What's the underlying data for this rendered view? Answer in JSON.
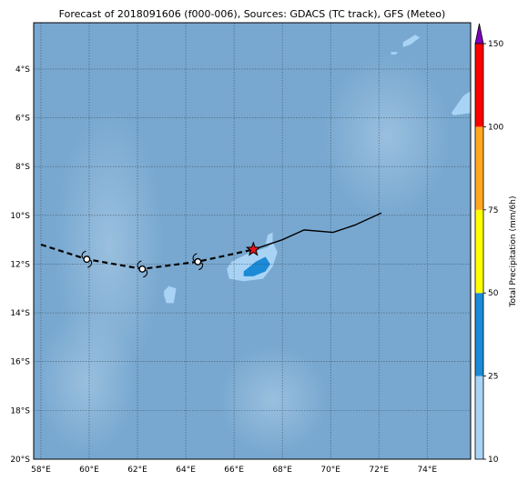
{
  "title": "Forecast of 2018091606 (f000-006), Sources: GDACS (TC track), GFS (Meteo)",
  "map": {
    "lon_range": [
      57.7,
      75.8
    ],
    "lat_range": [
      -20.0,
      -2.1
    ],
    "lon_ticks": [
      58,
      60,
      62,
      64,
      66,
      68,
      70,
      72,
      74
    ],
    "lat_ticks": [
      -4,
      -6,
      -8,
      -10,
      -12,
      -14,
      -16,
      -18,
      -20
    ],
    "lon_tick_labels": [
      "58°E",
      "60°E",
      "62°E",
      "64°E",
      "66°E",
      "68°E",
      "70°E",
      "72°E",
      "74°E"
    ],
    "lat_tick_labels": [
      "4°S",
      "6°S",
      "8°S",
      "10°S",
      "12°S",
      "14°S",
      "16°S",
      "18°S",
      "20°S"
    ],
    "ocean_color": "#78a8d0",
    "grid": true
  },
  "track": {
    "past": [
      [
        72.1,
        -9.9
      ],
      [
        71.0,
        -10.4
      ],
      [
        70.1,
        -10.7
      ],
      [
        68.9,
        -10.6
      ],
      [
        68.0,
        -11.0
      ],
      [
        66.8,
        -11.4
      ]
    ],
    "forecast": [
      [
        58.0,
        -11.2
      ],
      [
        59.9,
        -11.8
      ],
      [
        62.2,
        -12.2
      ],
      [
        64.5,
        -11.9
      ],
      [
        66.8,
        -11.4
      ]
    ],
    "current_position": [
      66.8,
      -11.4
    ],
    "forecast_points": [
      [
        59.9,
        -11.8
      ],
      [
        62.2,
        -12.2
      ],
      [
        64.5,
        -11.9
      ]
    ],
    "current_marker_color": "#e8141c"
  },
  "precip_patches": [
    {
      "level": 1,
      "color": "#a9d3f5",
      "points": [
        [
          65.9,
          -11.9
        ],
        [
          66.5,
          -11.6
        ],
        [
          67.4,
          -11.3
        ],
        [
          67.6,
          -11.1
        ],
        [
          67.8,
          -11.5
        ],
        [
          67.6,
          -12.1
        ],
        [
          67.2,
          -12.6
        ],
        [
          66.4,
          -12.7
        ],
        [
          65.8,
          -12.6
        ],
        [
          65.7,
          -12.2
        ]
      ]
    },
    {
      "level": 2,
      "color": "#1c8ad6",
      "points": [
        [
          66.4,
          -12.3
        ],
        [
          66.9,
          -11.9
        ],
        [
          67.3,
          -11.7
        ],
        [
          67.5,
          -12.0
        ],
        [
          67.3,
          -12.3
        ],
        [
          66.8,
          -12.5
        ],
        [
          66.4,
          -12.5
        ]
      ]
    },
    {
      "level": 1,
      "color": "#a9d3f5",
      "points": [
        [
          67.3,
          -11.2
        ],
        [
          67.4,
          -10.8
        ],
        [
          67.6,
          -10.7
        ],
        [
          67.6,
          -11.1
        ]
      ]
    },
    {
      "level": 1,
      "color": "#a9d3f5",
      "points": [
        [
          63.1,
          -13.1
        ],
        [
          63.3,
          -12.9
        ],
        [
          63.6,
          -13.0
        ],
        [
          63.5,
          -13.6
        ],
        [
          63.2,
          -13.6
        ],
        [
          63.1,
          -13.3
        ]
      ]
    },
    {
      "level": 1,
      "color": "#a9d3f5",
      "points": [
        [
          73.0,
          -2.9
        ],
        [
          73.5,
          -2.6
        ],
        [
          73.7,
          -2.7
        ],
        [
          73.3,
          -3.0
        ],
        [
          73.0,
          -3.1
        ]
      ]
    },
    {
      "level": 1,
      "color": "#a9d3f5",
      "points": [
        [
          72.5,
          -3.3
        ],
        [
          72.8,
          -3.3
        ],
        [
          72.7,
          -3.4
        ],
        [
          72.5,
          -3.4
        ]
      ]
    },
    {
      "level": 1,
      "color": "#a9d3f5",
      "points": [
        [
          75.0,
          -5.8
        ],
        [
          75.5,
          -5.1
        ],
        [
          75.8,
          -4.9
        ],
        [
          75.8,
          -5.8
        ],
        [
          75.1,
          -5.9
        ]
      ]
    }
  ],
  "colorbar": {
    "label": "Total Precipitation (mm/6h)",
    "bounds": [
      10,
      25,
      50,
      75,
      100,
      150
    ],
    "tick_labels": [
      "10",
      "25",
      "50",
      "75",
      "100",
      "150"
    ],
    "colors": [
      "#a9d3f5",
      "#1c8ad6",
      "#ffff00",
      "#ffa820",
      "#ff0000"
    ],
    "extend_color": "#8000c0"
  }
}
